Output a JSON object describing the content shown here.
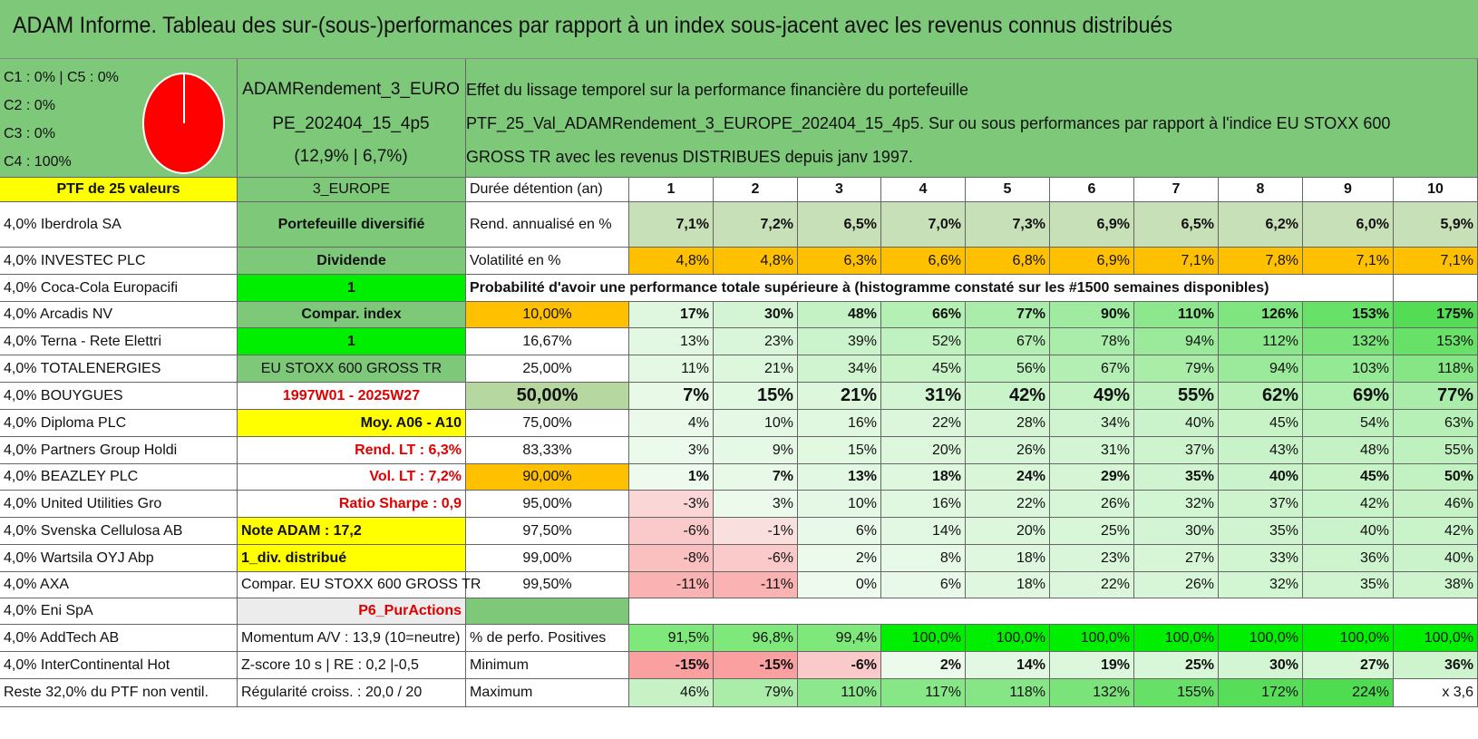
{
  "title": "ADAM Informe. Tableau des sur-(sous-)performances par rapport à un index sous-jacent avec les revenus connus distribués",
  "colors": {
    "title_bg": "#7ec87a",
    "header_green": "#7ec87a",
    "yellow": "#ffff00",
    "orange": "#ffc000",
    "bright_green": "#00ee00",
    "gray": "#ececec",
    "pie_red": "#ff0000",
    "red_text": "#e00000"
  },
  "pie": {
    "lines": [
      "C1 : 0% | C5 : 0%",
      "C2 : 0%",
      "C3 : 0%",
      "C4 : 100%"
    ],
    "slices": [
      0,
      0,
      0,
      100,
      0
    ]
  },
  "portfolio": {
    "name_lines": [
      "ADAMRendement_3_EURO",
      "PE_202404_15_4p5",
      "(12,9% | 6,7%)"
    ],
    "description_lines": [
      "Effet du lissage temporel sur la performance financière du portefeuille",
      "PTF_25_Val_ADAMRendement_3_EUROPE_202404_15_4p5. Sur ou sous performances par rapport à l'indice EU STOXX 600",
      "GROSS TR avec les revenus DISTRIBUES depuis janv 1997."
    ]
  },
  "holdings_header": "PTF de 25 valeurs",
  "holdings": [
    "4,0% Iberdrola SA",
    "4,0% INVESTEC PLC",
    "4,0% Coca-Cola Europacifi",
    "4,0% Arcadis NV",
    "4,0% Terna - Rete Elettri",
    "4,0% TOTALENERGIES",
    "4,0% BOUYGUES",
    "4,0% Diploma PLC",
    "4,0% Partners Group Holdi",
    "4,0% BEAZLEY PLC",
    "4,0% United Utilities Gro",
    "4,0% Svenska Cellulosa AB",
    "4,0% Wartsila OYJ Abp",
    "4,0% AXA",
    "4,0% Eni SpA",
    "4,0% AddTech AB",
    "4,0% InterContinental Hot",
    "Reste 32,0% du PTF non ventil."
  ],
  "info": [
    "3_EUROPE",
    "Portefeuille diversifié",
    "Dividende",
    "1",
    "Compar. index",
    "1",
    "EU STOXX 600 GROSS TR",
    "1997W01 - 2025W27",
    "Moy. A06 - A10",
    "Rend. LT : 6,3%",
    "Vol. LT : 7,2%",
    "Ratio Sharpe : 0,9",
    "Note ADAM : 17,2",
    "1_div. distribué",
    "Compar. EU STOXX 600 GROSS TR",
    "P6_PurActions",
    "Momentum A/V : 13,9 (10=neutre)",
    "Z-score 10 s | RE : 0,2 |-0,5",
    "Régularité croiss. : 20,0 / 20"
  ],
  "table": {
    "duration_label": "Durée détention (an)",
    "years": [
      "1",
      "2",
      "3",
      "4",
      "5",
      "6",
      "7",
      "8",
      "9",
      "10"
    ],
    "rend_label": "Rend. annualisé en %",
    "rend": [
      "7,1%",
      "7,2%",
      "6,5%",
      "7,0%",
      "7,3%",
      "6,9%",
      "6,5%",
      "6,2%",
      "6,0%",
      "5,9%"
    ],
    "vol_label": "Volatilité en %",
    "vol": [
      "4,8%",
      "4,8%",
      "6,3%",
      "6,6%",
      "6,8%",
      "6,9%",
      "7,1%",
      "7,8%",
      "7,1%",
      "7,1%"
    ],
    "prob_header": "Probabilité d'avoir une performance totale supérieure à (histogramme constaté sur les #1500 semaines disponibles)",
    "quantiles": [
      {
        "p": "10,00%",
        "v": [
          "17%",
          "30%",
          "48%",
          "66%",
          "77%",
          "90%",
          "110%",
          "126%",
          "153%",
          "175%"
        ]
      },
      {
        "p": "16,67%",
        "v": [
          "13%",
          "23%",
          "39%",
          "52%",
          "67%",
          "78%",
          "94%",
          "112%",
          "132%",
          "153%"
        ]
      },
      {
        "p": "25,00%",
        "v": [
          "11%",
          "21%",
          "34%",
          "45%",
          "56%",
          "67%",
          "79%",
          "94%",
          "103%",
          "118%"
        ]
      },
      {
        "p": "50,00%",
        "v": [
          "7%",
          "15%",
          "21%",
          "31%",
          "42%",
          "49%",
          "55%",
          "62%",
          "69%",
          "77%"
        ]
      },
      {
        "p": "75,00%",
        "v": [
          "4%",
          "10%",
          "16%",
          "22%",
          "28%",
          "34%",
          "40%",
          "45%",
          "54%",
          "63%"
        ]
      },
      {
        "p": "83,33%",
        "v": [
          "3%",
          "9%",
          "15%",
          "20%",
          "26%",
          "31%",
          "37%",
          "43%",
          "48%",
          "55%"
        ]
      },
      {
        "p": "90,00%",
        "v": [
          "1%",
          "7%",
          "13%",
          "18%",
          "24%",
          "29%",
          "35%",
          "40%",
          "45%",
          "50%"
        ]
      },
      {
        "p": "95,00%",
        "v": [
          "-3%",
          "3%",
          "10%",
          "16%",
          "22%",
          "26%",
          "32%",
          "37%",
          "42%",
          "46%"
        ]
      },
      {
        "p": "97,50%",
        "v": [
          "-6%",
          "-1%",
          "6%",
          "14%",
          "20%",
          "25%",
          "30%",
          "35%",
          "40%",
          "42%"
        ]
      },
      {
        "p": "99,00%",
        "v": [
          "-8%",
          "-6%",
          "2%",
          "8%",
          "18%",
          "23%",
          "27%",
          "33%",
          "36%",
          "40%"
        ]
      },
      {
        "p": "99,50%",
        "v": [
          "-11%",
          "-11%",
          "0%",
          "6%",
          "18%",
          "22%",
          "26%",
          "32%",
          "35%",
          "38%"
        ]
      }
    ],
    "pos_label": "% de perfo. Positives",
    "pos": [
      "91,5%",
      "96,8%",
      "99,4%",
      "100,0%",
      "100,0%",
      "100,0%",
      "100,0%",
      "100,0%",
      "100,0%",
      "100,0%"
    ],
    "min_label": "Minimum",
    "min": [
      "-15%",
      "-15%",
      "-6%",
      "2%",
      "14%",
      "19%",
      "25%",
      "30%",
      "27%",
      "36%"
    ],
    "max_label": "Maximum",
    "max": [
      "46%",
      "79%",
      "110%",
      "117%",
      "118%",
      "132%",
      "155%",
      "172%",
      "224%",
      "x 3,6"
    ]
  }
}
